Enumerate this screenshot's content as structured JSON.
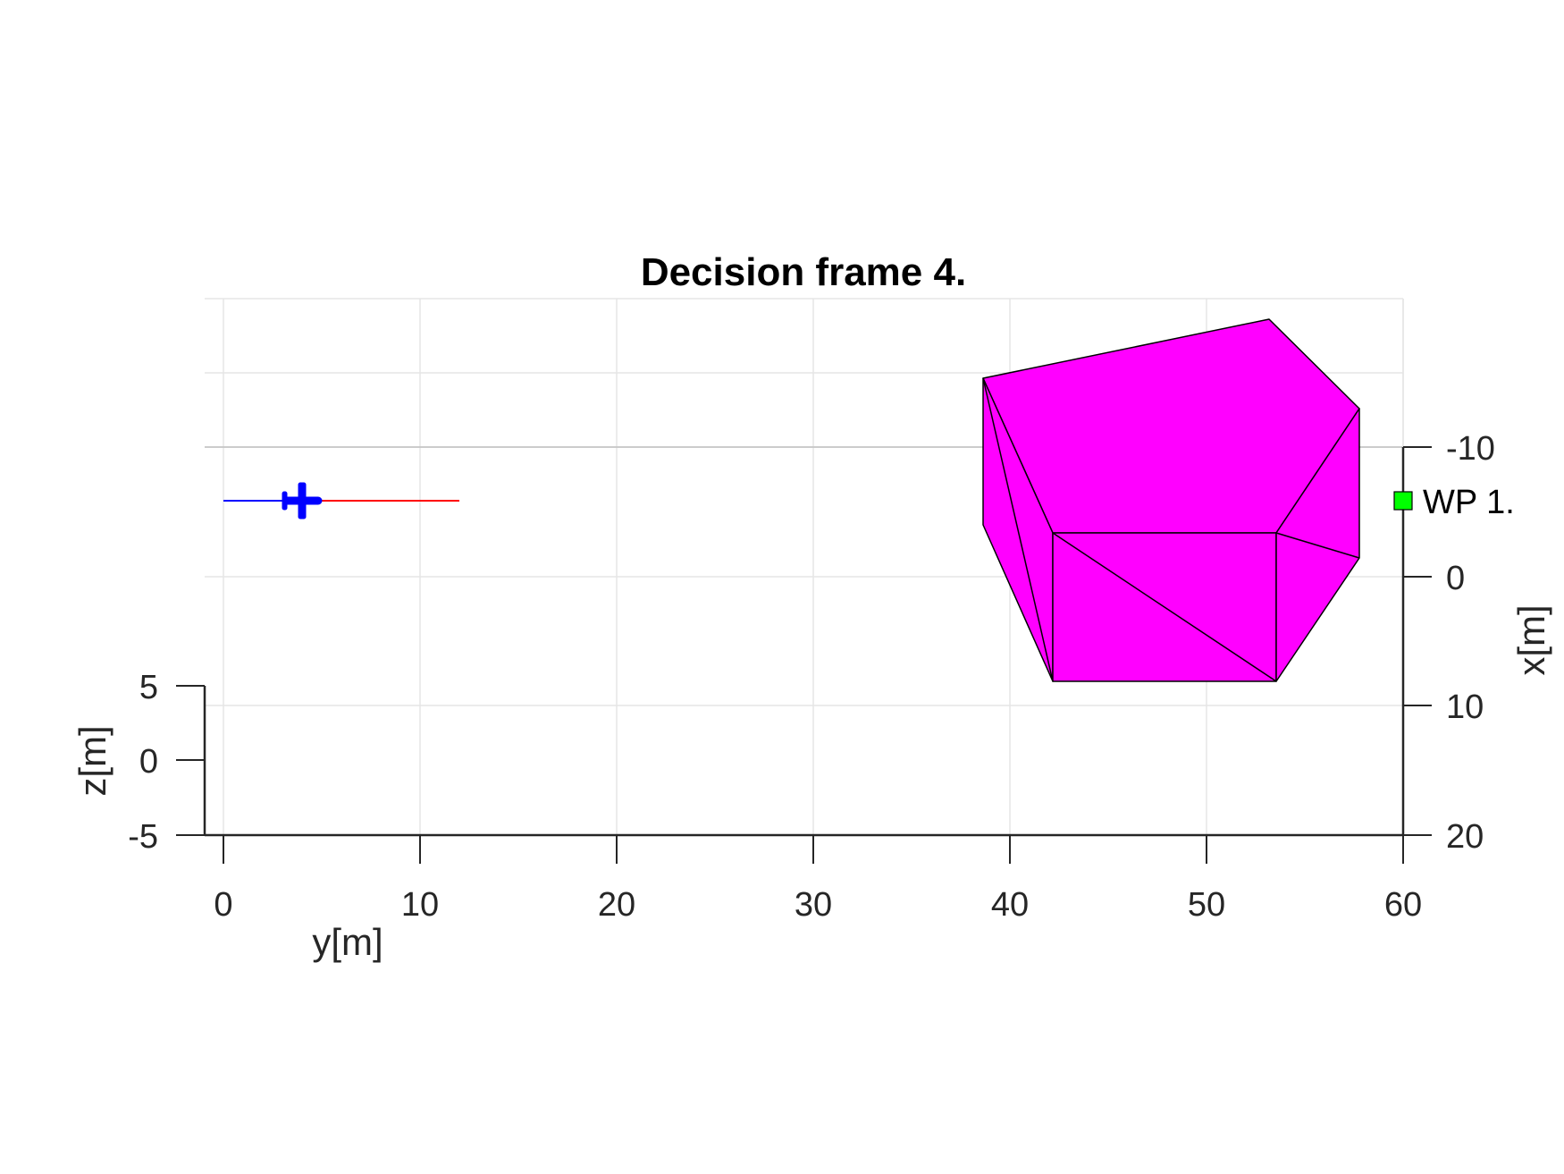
{
  "chart_data": {
    "type": "scatter",
    "title": "Decision frame 4.",
    "y_axis": {
      "label": "y[m]",
      "range": [
        -1,
        60
      ],
      "ticks": [
        0,
        10,
        20,
        30,
        40,
        50,
        60
      ],
      "tick_labels": [
        "0",
        "10",
        "20",
        "30",
        "40",
        "50",
        "60"
      ]
    },
    "x_axis": {
      "label": "x[m]",
      "range": [
        -10,
        20
      ],
      "ticks": [
        -10,
        0,
        10,
        20
      ],
      "tick_labels": [
        "-10",
        "0",
        "10",
        "20"
      ]
    },
    "z_axis": {
      "label": "z[m]",
      "range": [
        -5,
        5
      ],
      "ticks": [
        -5,
        0,
        5
      ],
      "tick_labels": [
        "-5",
        "0",
        "5"
      ]
    },
    "grid": true,
    "view": "3d-oblique",
    "series": [
      {
        "kind": "trajectory-past",
        "color": "#0000ff",
        "y": [
          0,
          4
        ],
        "x": [
          -5.8,
          -5.8
        ],
        "z": [
          0,
          0
        ]
      },
      {
        "kind": "trajectory-planned",
        "color": "#ff0000",
        "y": [
          4,
          12
        ],
        "x": [
          -5.8,
          -5.8
        ],
        "z": [
          0,
          0
        ]
      },
      {
        "kind": "aircraft",
        "color": "#0000ff",
        "y": 4,
        "x": -5.8,
        "z": 0
      }
    ],
    "waypoints": [
      {
        "label": "WP 1.",
        "y": 60,
        "x": -5.8,
        "z": 0,
        "color": "#00ff00"
      }
    ],
    "obstacles": [
      {
        "color": "#ff00ff",
        "edge_color": "#000000",
        "y_range": [
          38.8,
          58
        ],
        "x_range": [
          -10,
          8.5
        ]
      }
    ]
  }
}
